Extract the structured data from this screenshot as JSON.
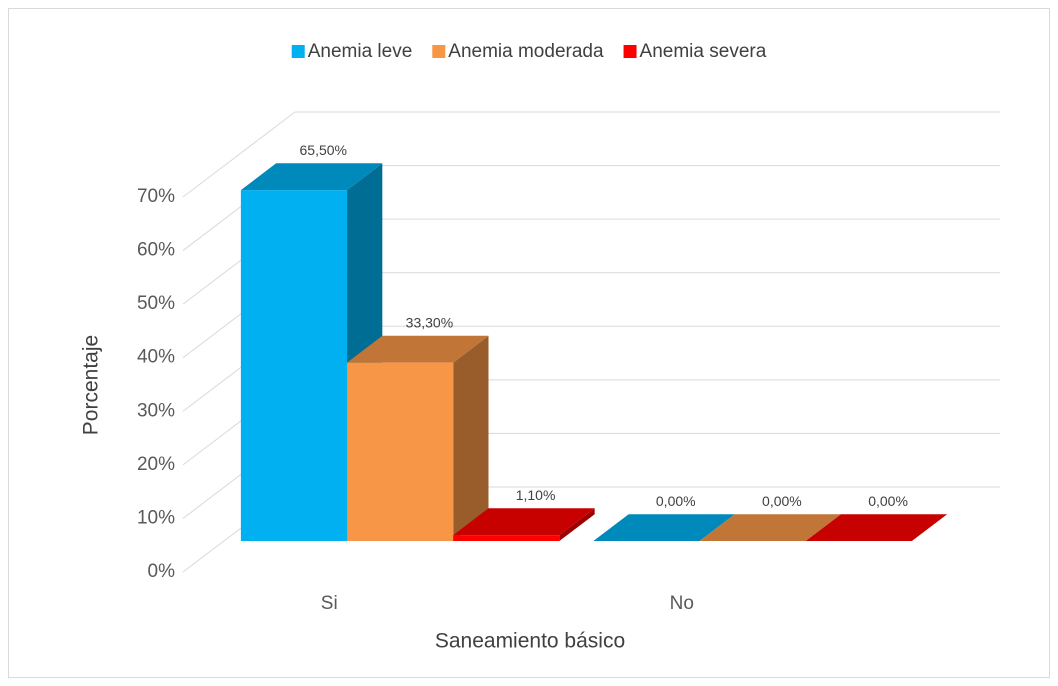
{
  "chart_data": {
    "type": "bar3d",
    "categories": [
      "Si",
      "No"
    ],
    "series": [
      {
        "name": "Anemia leve",
        "color": "#00b0f0",
        "values": [
          65.5,
          0
        ],
        "value_labels": [
          "65,50%",
          "0,00%"
        ]
      },
      {
        "name": "Anemia moderada",
        "color": "#f79646",
        "values": [
          33.3,
          0
        ],
        "value_labels": [
          "33,30%",
          "0,00%"
        ]
      },
      {
        "name": "Anemia severa",
        "color": "#ff0000",
        "values": [
          1.1,
          0
        ],
        "value_labels": [
          "1,10%",
          "0,00%"
        ]
      }
    ],
    "ylim": [
      0,
      70
    ],
    "yticks": [
      {
        "value": 0,
        "label": "0%"
      },
      {
        "value": 10,
        "label": "10%"
      },
      {
        "value": 20,
        "label": "20%"
      },
      {
        "value": 30,
        "label": "30%"
      },
      {
        "value": 40,
        "label": "40%"
      },
      {
        "value": 50,
        "label": "50%"
      },
      {
        "value": 60,
        "label": "60%"
      },
      {
        "value": 70,
        "label": "70%"
      }
    ],
    "y_label": "Porcentaje",
    "x_label": "Saneamiento básico",
    "legend": "top",
    "grid": true
  }
}
